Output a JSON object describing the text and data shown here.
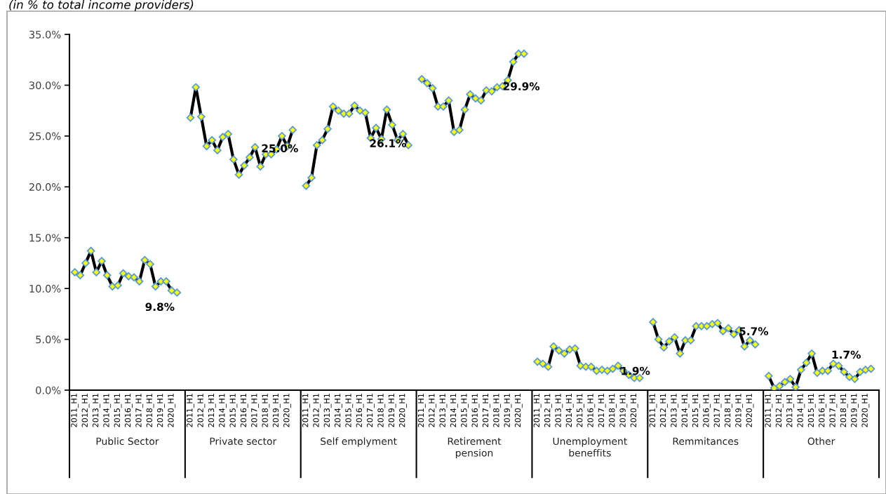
{
  "chart_data": [
    {
      "type": "line",
      "subtitle": "(in % to total income providers)",
      "xlabel": "Public Sector",
      "categories": [
        "2011_H1",
        null,
        "2012_H1",
        null,
        "2013_H1",
        null,
        "2014_H1",
        null,
        "2015_H1",
        null,
        "2016_H1",
        null,
        "2017_H1",
        null,
        "2018_H1",
        null,
        "2019_H1",
        null,
        "2020_H1",
        null,
        null
      ],
      "series": [
        {
          "color": "#000000",
          "values": [
            11.6,
            11.3,
            12.5,
            13.7,
            11.6,
            12.7,
            11.3,
            10.2,
            10.3,
            11.5,
            11.2,
            11.1,
            10.7,
            12.8,
            12.4,
            10.2,
            10.7,
            10.7,
            9.8,
            9.6,
            null
          ]
        }
      ],
      "ylim": [
        0,
        35
      ],
      "yticks": [
        {
          "value": 0,
          "label": "0.0%"
        },
        {
          "value": 5,
          "label": "5.0%"
        },
        {
          "value": 10,
          "label": "10.0%"
        },
        {
          "value": 15,
          "label": "15.0%"
        },
        {
          "value": 20,
          "label": "20.0%"
        },
        {
          "value": 25,
          "label": "25.0%"
        },
        {
          "value": 30,
          "label": "30.0%"
        },
        {
          "value": 35,
          "label": "35.0%"
        }
      ],
      "marker": "diamond",
      "grid": false,
      "legend": false,
      "annotations": [
        "9.8%"
      ]
    },
    {
      "type": "line",
      "xlabel": "Private sector",
      "categories": [
        "2011_H1",
        null,
        "2012_H1",
        null,
        "2013_H1",
        null,
        "2014_H1",
        null,
        "2015_H1",
        null,
        "2016_H1",
        null,
        "2017_H1",
        null,
        "2018_H1",
        null,
        "2019_H1",
        null,
        "2020_H1",
        null,
        null
      ],
      "series": [
        {
          "color": "#000000",
          "values": [
            26.8,
            29.8,
            26.9,
            24.0,
            24.6,
            23.6,
            24.9,
            25.2,
            22.7,
            21.2,
            22.1,
            22.9,
            23.9,
            22.0,
            23.2,
            23.2,
            23.7,
            25.0,
            24.0,
            25.6,
            null
          ]
        }
      ],
      "ylim": [
        0,
        35
      ],
      "tick_labels": "x",
      "marker": "diamond",
      "grid": false,
      "legend": false,
      "annotations": [
        "25.0%"
      ]
    },
    {
      "type": "line",
      "xlabel": "Self emplyment",
      "categories": [
        "2011_H1",
        null,
        "2012_H1",
        null,
        "2013_H1",
        null,
        "2014_H1",
        null,
        "2015_H1",
        null,
        "2016_H1",
        null,
        "2017_H1",
        null,
        "2018_H1",
        null,
        "2019_H1",
        null,
        "2020_H1",
        null,
        null
      ],
      "series": [
        {
          "color": "#000000",
          "values": [
            20.1,
            20.9,
            24.1,
            24.6,
            25.7,
            27.9,
            27.5,
            27.2,
            27.2,
            28.0,
            27.5,
            27.3,
            24.8,
            25.8,
            24.7,
            27.6,
            26.1,
            24.6,
            25.2,
            24.1,
            null
          ]
        }
      ],
      "ylim": [
        0,
        35
      ],
      "tick_labels": "x",
      "marker": "diamond",
      "grid": false,
      "legend": false,
      "annotations": [
        "26.1%"
      ]
    },
    {
      "type": "line",
      "xlabel": "Retirement\npension",
      "categories": [
        "2011_H1",
        null,
        "2012_H1",
        null,
        "2013_H1",
        null,
        "2014_H1",
        null,
        "2015_H1",
        null,
        "2016_H1",
        null,
        "2017_H1",
        null,
        "2018_H1",
        null,
        "2019_H1",
        null,
        "2020_H1",
        null,
        null
      ],
      "series": [
        {
          "color": "#000000",
          "values": [
            30.6,
            30.2,
            29.7,
            27.9,
            27.9,
            28.5,
            25.4,
            25.6,
            27.6,
            29.1,
            28.7,
            28.5,
            29.5,
            29.4,
            29.8,
            29.9,
            30.5,
            32.3,
            33.1,
            33.1,
            null
          ]
        }
      ],
      "ylim": [
        0,
        35
      ],
      "tick_labels": "x",
      "marker": "diamond",
      "grid": false,
      "legend": false,
      "annotations": [
        "29.9%"
      ]
    },
    {
      "type": "line",
      "xlabel": "Unemployment\nbeneffits",
      "categories": [
        "2011_H1",
        null,
        "2012_H1",
        null,
        "2013_H1",
        null,
        "2014_H1",
        null,
        "2015_H1",
        null,
        "2016_H1",
        null,
        "2017_H1",
        null,
        "2018_H1",
        null,
        "2019_H1",
        null,
        "2020_H1",
        null,
        null
      ],
      "series": [
        {
          "color": "#000000",
          "values": [
            2.8,
            2.6,
            2.3,
            4.3,
            3.9,
            3.6,
            4.0,
            4.1,
            2.4,
            2.3,
            2.3,
            1.9,
            2.0,
            1.9,
            2.1,
            2.4,
            1.9,
            1.5,
            1.2,
            1.2,
            null
          ]
        }
      ],
      "ylim": [
        0,
        35
      ],
      "tick_labels": "x",
      "marker": "diamond",
      "grid": false,
      "legend": false,
      "annotations": [
        "1.9%"
      ]
    },
    {
      "type": "line",
      "xlabel": "Remmitances",
      "categories": [
        "2011_H1",
        null,
        "2012_H1",
        null,
        "2013_H1",
        null,
        "2014_H1",
        null,
        "2015_H1",
        null,
        "2016_H1",
        null,
        "2017_H1",
        null,
        "2018_H1",
        null,
        "2019_H1",
        null,
        "2020_H1",
        null,
        null
      ],
      "series": [
        {
          "color": "#000000",
          "values": [
            6.7,
            5.0,
            4.2,
            4.8,
            5.2,
            3.6,
            4.9,
            4.9,
            6.3,
            6.3,
            6.3,
            6.5,
            6.6,
            5.8,
            6.1,
            5.5,
            5.9,
            4.3,
            4.9,
            4.5,
            null
          ]
        }
      ],
      "ylim": [
        0,
        35
      ],
      "tick_labels": "x",
      "marker": "diamond",
      "grid": false,
      "legend": false,
      "annotations": [
        "5.7%"
      ]
    },
    {
      "type": "line",
      "xlabel": "Other",
      "categories": [
        "2011_H1",
        null,
        "2012_H1",
        null,
        "2013_H1",
        null,
        "2014_H1",
        null,
        "2015_H1",
        null,
        "2016_H1",
        null,
        "2017_H1",
        null,
        "2018_H1",
        null,
        "2019_H1",
        null,
        "2020_H1",
        null,
        null
      ],
      "series": [
        {
          "color": "#000000",
          "values": [
            1.4,
            0.2,
            0.4,
            0.8,
            1.1,
            0.3,
            2.0,
            2.7,
            3.6,
            1.7,
            1.9,
            1.9,
            2.6,
            2.4,
            1.8,
            1.3,
            1.1,
            1.8,
            2.0,
            2.1,
            null
          ]
        }
      ],
      "ylim": [
        0,
        35
      ],
      "tick_labels": "x",
      "marker": "diamond",
      "grid": false,
      "legend": false,
      "annotations": [
        "1.7%"
      ]
    }
  ]
}
